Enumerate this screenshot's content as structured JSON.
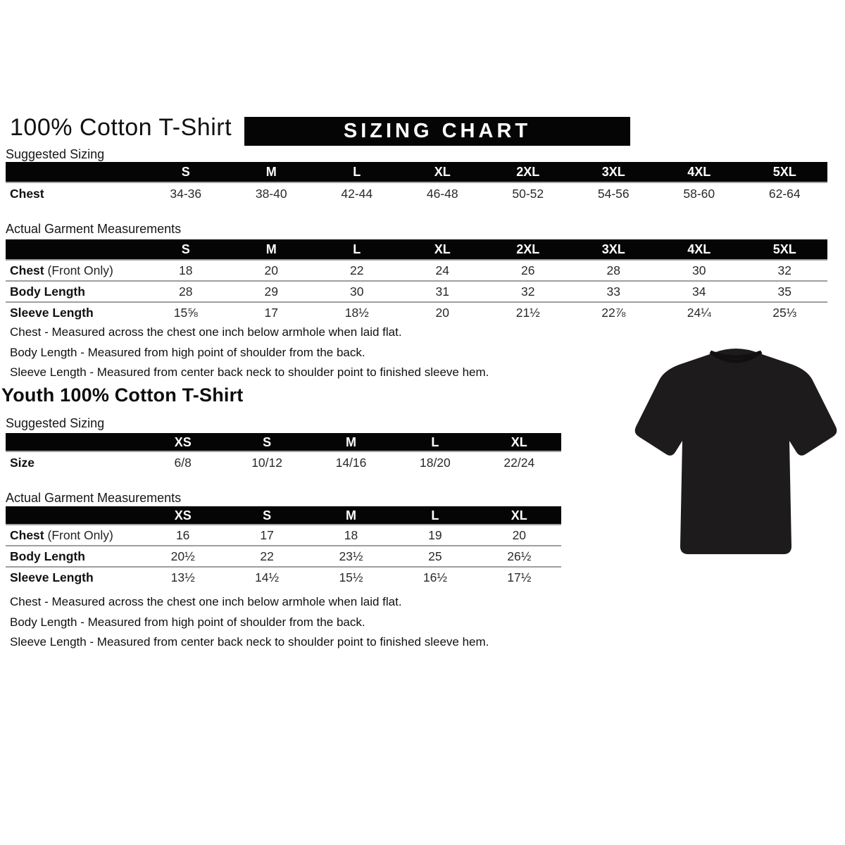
{
  "page": {
    "title": "100% Cotton T-Shirt",
    "banner": "SIZING CHART",
    "youth_title": "Youth 100% Cotton T-Shirt"
  },
  "labels": {
    "suggested": "Suggested Sizing",
    "actual": "Actual Garment Measurements"
  },
  "adult": {
    "suggested": {
      "columns": [
        "S",
        "M",
        "L",
        "XL",
        "2XL",
        "3XL",
        "4XL",
        "5XL"
      ],
      "rows": [
        {
          "label": "Chest",
          "suffix": "",
          "values": [
            "34-36",
            "38-40",
            "42-44",
            "46-48",
            "50-52",
            "54-56",
            "58-60",
            "62-64"
          ]
        }
      ]
    },
    "measurements": {
      "columns": [
        "S",
        "M",
        "L",
        "XL",
        "2XL",
        "3XL",
        "4XL",
        "5XL"
      ],
      "rows": [
        {
          "label": "Chest",
          "suffix": " (Front Only)",
          "values": [
            "18",
            "20",
            "22",
            "24",
            "26",
            "28",
            "30",
            "32"
          ]
        },
        {
          "label": "Body Length",
          "suffix": "",
          "values": [
            "28",
            "29",
            "30",
            "31",
            "32",
            "33",
            "34",
            "35"
          ]
        },
        {
          "label": "Sleeve Length",
          "suffix": "",
          "values": [
            "15⅝",
            "17",
            "18½",
            "20",
            "21½",
            "22⅞",
            "24¼",
            "25⅓"
          ]
        }
      ]
    }
  },
  "youth": {
    "suggested": {
      "columns": [
        "XS",
        "S",
        "M",
        "L",
        "XL"
      ],
      "rows": [
        {
          "label": "Size",
          "suffix": "",
          "values": [
            "6/8",
            "10/12",
            "14/16",
            "18/20",
            "22/24"
          ]
        }
      ]
    },
    "measurements": {
      "columns": [
        "XS",
        "S",
        "M",
        "L",
        "XL"
      ],
      "rows": [
        {
          "label": "Chest",
          "suffix": " (Front Only)",
          "values": [
            "16",
            "17",
            "18",
            "19",
            "20"
          ]
        },
        {
          "label": "Body Length",
          "suffix": "",
          "values": [
            "20½",
            "22",
            "23½",
            "25",
            "26½"
          ]
        },
        {
          "label": "Sleeve Length",
          "suffix": "",
          "values": [
            "13½",
            "14½",
            "15½",
            "16½",
            "17½"
          ]
        }
      ]
    }
  },
  "notes": [
    "Chest - Measured across the chest one inch below armhole when laid flat.",
    "Body Length - Measured from high point of shoulder from the back.",
    "Sleeve Length - Measured from center back neck to shoulder point to finished sleeve hem."
  ],
  "tshirt": {
    "name": "black t-shirt product photo",
    "color": "#1d1b1c",
    "collar_color": "#111010"
  }
}
